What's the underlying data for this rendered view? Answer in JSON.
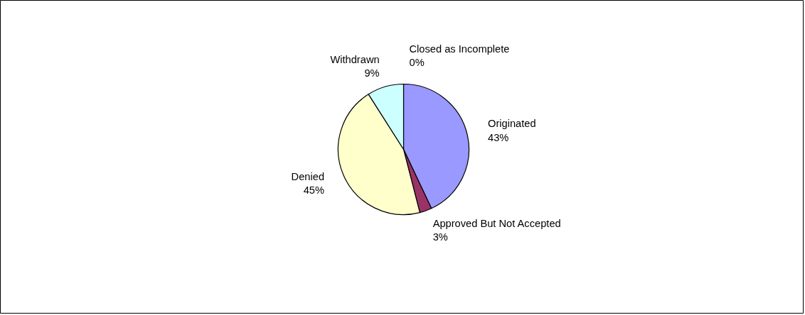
{
  "chart_data": {
    "type": "pie",
    "categories": [
      "Originated",
      "Approved But Not Accepted",
      "Denied",
      "Withdrawn",
      "Closed as Incomplete"
    ],
    "values": [
      43,
      3,
      45,
      9,
      0
    ],
    "value_labels": [
      "43%",
      "3%",
      "45%",
      "9%",
      "0%"
    ],
    "colors": [
      "#9999ff",
      "#993366",
      "#ffffcc",
      "#ccffff",
      "#660066"
    ]
  }
}
